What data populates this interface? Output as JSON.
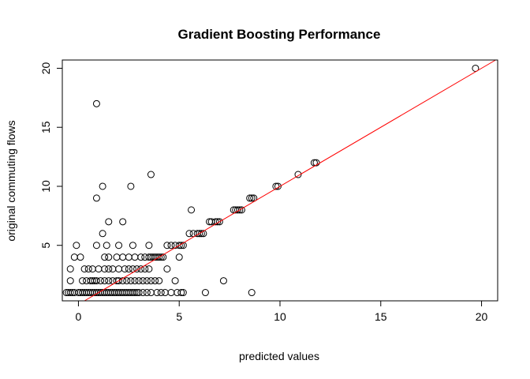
{
  "chart_data": {
    "type": "scatter",
    "title": "Gradient Boosting Performance",
    "xlabel": "predicted values",
    "ylabel": "original commuting flows",
    "xlim": [
      -0.8,
      20.8
    ],
    "ylim": [
      0.3,
      20.7
    ],
    "xticks": [
      0,
      5,
      10,
      15,
      20
    ],
    "yticks": [
      5,
      10,
      15,
      20
    ],
    "grid": false,
    "point_color": "#000000",
    "reference_line": {
      "slope": 1,
      "intercept": 0,
      "color": "#ff0000"
    },
    "points": [
      [
        -0.6,
        1
      ],
      [
        -0.5,
        1
      ],
      [
        -0.4,
        1
      ],
      [
        -0.3,
        1
      ],
      [
        -0.2,
        1
      ],
      [
        0.0,
        1
      ],
      [
        0.1,
        1
      ],
      [
        0.2,
        1
      ],
      [
        0.3,
        1
      ],
      [
        0.4,
        1
      ],
      [
        0.5,
        1
      ],
      [
        0.6,
        1
      ],
      [
        0.7,
        1
      ],
      [
        0.8,
        1
      ],
      [
        0.9,
        1
      ],
      [
        1.0,
        1
      ],
      [
        1.1,
        1
      ],
      [
        1.2,
        1
      ],
      [
        1.3,
        1
      ],
      [
        1.4,
        1
      ],
      [
        1.5,
        1
      ],
      [
        1.6,
        1
      ],
      [
        1.7,
        1
      ],
      [
        1.8,
        1
      ],
      [
        1.9,
        1
      ],
      [
        2.0,
        1
      ],
      [
        2.1,
        1
      ],
      [
        2.2,
        1
      ],
      [
        2.3,
        1
      ],
      [
        2.4,
        1
      ],
      [
        2.5,
        1
      ],
      [
        2.6,
        1
      ],
      [
        2.7,
        1
      ],
      [
        2.8,
        1
      ],
      [
        2.9,
        1
      ],
      [
        3.0,
        1
      ],
      [
        3.2,
        1
      ],
      [
        3.4,
        1
      ],
      [
        3.6,
        1
      ],
      [
        3.9,
        1
      ],
      [
        4.1,
        1
      ],
      [
        4.3,
        1
      ],
      [
        4.6,
        1
      ],
      [
        4.9,
        1
      ],
      [
        5.1,
        1
      ],
      [
        5.2,
        1
      ],
      [
        6.3,
        1
      ],
      [
        8.6,
        1
      ],
      [
        -0.4,
        2
      ],
      [
        0.2,
        2
      ],
      [
        0.4,
        2
      ],
      [
        0.6,
        2
      ],
      [
        0.7,
        2
      ],
      [
        0.8,
        2
      ],
      [
        0.9,
        2
      ],
      [
        1.1,
        2
      ],
      [
        1.3,
        2
      ],
      [
        1.5,
        2
      ],
      [
        1.7,
        2
      ],
      [
        1.9,
        2
      ],
      [
        2.0,
        2
      ],
      [
        2.2,
        2
      ],
      [
        2.4,
        2
      ],
      [
        2.6,
        2
      ],
      [
        2.8,
        2
      ],
      [
        3.0,
        2
      ],
      [
        3.2,
        2
      ],
      [
        3.4,
        2
      ],
      [
        3.6,
        2
      ],
      [
        3.8,
        2
      ],
      [
        4.0,
        2
      ],
      [
        4.8,
        2
      ],
      [
        7.2,
        2
      ],
      [
        -0.4,
        3
      ],
      [
        0.3,
        3
      ],
      [
        0.5,
        3
      ],
      [
        0.7,
        3
      ],
      [
        1.0,
        3
      ],
      [
        1.3,
        3
      ],
      [
        1.5,
        3
      ],
      [
        1.7,
        3
      ],
      [
        2.0,
        3
      ],
      [
        2.3,
        3
      ],
      [
        2.5,
        3
      ],
      [
        2.7,
        3
      ],
      [
        2.9,
        3
      ],
      [
        3.1,
        3
      ],
      [
        3.3,
        3
      ],
      [
        3.5,
        3
      ],
      [
        4.4,
        3
      ],
      [
        -0.2,
        4
      ],
      [
        0.1,
        4
      ],
      [
        1.3,
        4
      ],
      [
        1.5,
        4
      ],
      [
        1.9,
        4
      ],
      [
        2.2,
        4
      ],
      [
        2.5,
        4
      ],
      [
        2.8,
        4
      ],
      [
        3.1,
        4
      ],
      [
        3.3,
        4
      ],
      [
        3.5,
        4
      ],
      [
        3.6,
        4
      ],
      [
        3.7,
        4
      ],
      [
        3.8,
        4
      ],
      [
        3.9,
        4
      ],
      [
        4.0,
        4
      ],
      [
        4.1,
        4
      ],
      [
        4.2,
        4
      ],
      [
        5.0,
        4
      ],
      [
        -0.1,
        5
      ],
      [
        0.9,
        5
      ],
      [
        1.4,
        5
      ],
      [
        2.0,
        5
      ],
      [
        2.7,
        5
      ],
      [
        3.5,
        5
      ],
      [
        4.4,
        5
      ],
      [
        4.6,
        5
      ],
      [
        4.8,
        5
      ],
      [
        5.0,
        5
      ],
      [
        5.1,
        5
      ],
      [
        5.2,
        5
      ],
      [
        1.2,
        6
      ],
      [
        5.5,
        6
      ],
      [
        5.7,
        6
      ],
      [
        5.9,
        6
      ],
      [
        6.0,
        6
      ],
      [
        6.1,
        6
      ],
      [
        6.2,
        6
      ],
      [
        1.5,
        7
      ],
      [
        2.2,
        7
      ],
      [
        6.5,
        7
      ],
      [
        6.6,
        7
      ],
      [
        6.8,
        7
      ],
      [
        6.9,
        7
      ],
      [
        7.0,
        7
      ],
      [
        5.6,
        8
      ],
      [
        7.7,
        8
      ],
      [
        7.8,
        8
      ],
      [
        7.9,
        8
      ],
      [
        8.0,
        8
      ],
      [
        8.1,
        8
      ],
      [
        0.9,
        9
      ],
      [
        8.5,
        9
      ],
      [
        8.6,
        9
      ],
      [
        8.7,
        9
      ],
      [
        1.2,
        10
      ],
      [
        2.6,
        10
      ],
      [
        9.8,
        10
      ],
      [
        9.9,
        10
      ],
      [
        3.6,
        11
      ],
      [
        10.9,
        11
      ],
      [
        11.7,
        12
      ],
      [
        11.8,
        12
      ],
      [
        0.9,
        17
      ],
      [
        19.7,
        20
      ]
    ]
  }
}
